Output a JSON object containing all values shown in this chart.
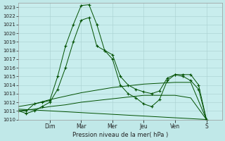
{
  "xlabel": "Pression niveau de la mer( hPa )",
  "bg_color": "#c0e8e8",
  "plot_bg_color": "#c8eded",
  "grid_color": "#a8d0d0",
  "line_color": "#005000",
  "ylim": [
    1010,
    1023.5
  ],
  "ytick_min": 1010,
  "ytick_max": 1023,
  "day_labels": [
    "Dim",
    "Mar",
    "Mer",
    "Jeu",
    "Ven",
    "S"
  ],
  "day_positions": [
    2,
    4,
    6,
    8,
    10,
    12
  ],
  "xlim": [
    0,
    13
  ],
  "series1_x": [
    0,
    0.5,
    1,
    1.5,
    2,
    2.5,
    3,
    3.5,
    4,
    4.5,
    5,
    5.5,
    6,
    6.5,
    7,
    7.5,
    8,
    8.5,
    9,
    9.5,
    10,
    10.5,
    11,
    11.5,
    12
  ],
  "series1_y": [
    1011,
    1011,
    1011.8,
    1012,
    1012.2,
    1015,
    1018.5,
    1021,
    1023.2,
    1023.3,
    1021,
    1018,
    1017.5,
    1015,
    1014,
    1013.5,
    1013.2,
    1013.0,
    1013.3,
    1014.8,
    1015.2,
    1015.2,
    1015.2,
    1014.0,
    1010
  ],
  "series2_x": [
    0,
    0.5,
    1,
    1.5,
    2,
    2.5,
    3,
    3.5,
    4,
    4.5,
    5,
    5.5,
    6,
    6.5,
    7,
    7.5,
    8,
    8.5,
    9,
    9.5,
    10,
    10.5,
    11,
    11.5,
    12
  ],
  "series2_y": [
    1011,
    1010.7,
    1011,
    1011.5,
    1012,
    1013.5,
    1016,
    1019,
    1021.5,
    1021.8,
    1018.5,
    1018,
    1017,
    1014,
    1013.0,
    1012.5,
    1011.8,
    1011.5,
    1012.3,
    1014.5,
    1015.2,
    1015.0,
    1014.5,
    1013.5,
    1010
  ],
  "series3_x": [
    0,
    1,
    2,
    3,
    4,
    5,
    6,
    7,
    8,
    9,
    10,
    11,
    12
  ],
  "series3_y": [
    1011.5,
    1011.8,
    1012.3,
    1012.7,
    1013.1,
    1013.4,
    1013.7,
    1013.9,
    1014.1,
    1014.2,
    1014.3,
    1014.3,
    1010.0
  ],
  "series4_x": [
    0,
    1,
    2,
    3,
    4,
    5,
    6,
    7,
    8,
    9,
    10,
    11,
    12
  ],
  "series4_y": [
    1011.0,
    1011.2,
    1011.5,
    1011.7,
    1012.0,
    1012.2,
    1012.4,
    1012.6,
    1012.8,
    1012.8,
    1012.8,
    1012.5,
    1010.0
  ],
  "series5_x": [
    0,
    12
  ],
  "series5_y": [
    1011.2,
    1010.0
  ]
}
